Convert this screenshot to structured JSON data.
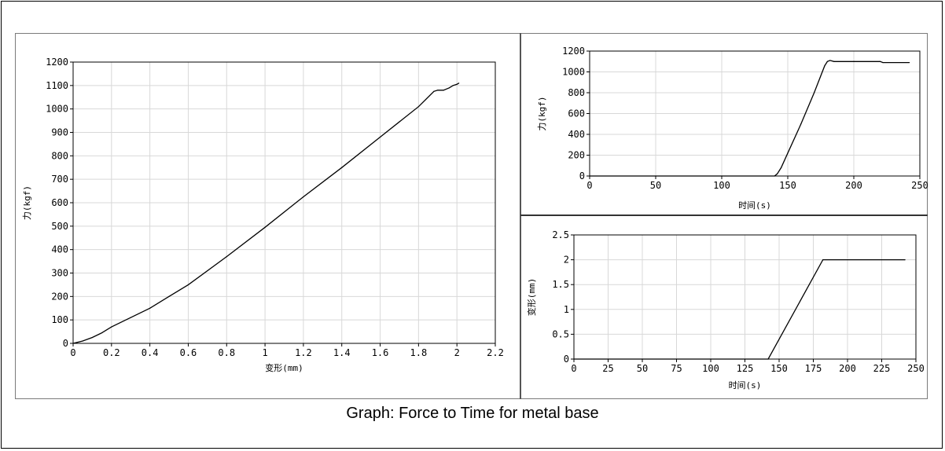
{
  "caption": "Graph: Force to Time for metal base",
  "colors": {
    "line": "#000000",
    "grid": "#d8d8d8",
    "frame": "#000000"
  },
  "chart_data": [
    {
      "id": "force_vs_deformation",
      "type": "line",
      "title": "",
      "xlabel": "变形(mm)",
      "ylabel": "力(kgf)",
      "xlim": [
        0,
        2.2
      ],
      "ylim": [
        0,
        1200
      ],
      "xticks": [
        0,
        0.2,
        0.4,
        0.6,
        0.8,
        1,
        1.2,
        1.4,
        1.6,
        1.8,
        2,
        2.2
      ],
      "xticklabels": [
        "0",
        "0.2",
        "0.4",
        "0.6",
        "0.8",
        "1",
        "1.2",
        "1.4",
        "1.6",
        "1.8",
        "2",
        "2.2"
      ],
      "yticks": [
        0,
        100,
        200,
        300,
        400,
        500,
        600,
        700,
        800,
        900,
        1000,
        1100,
        1200
      ],
      "yticklabels": [
        "0",
        "100",
        "200",
        "300",
        "400",
        "500",
        "600",
        "700",
        "800",
        "900",
        "1000",
        "1100",
        "1200"
      ],
      "grid": true,
      "series": [
        {
          "x": [
            0,
            0.05,
            0.1,
            0.15,
            0.2,
            0.3,
            0.4,
            0.5,
            0.6,
            0.8,
            1.0,
            1.2,
            1.4,
            1.6,
            1.8,
            1.88,
            1.9,
            1.93,
            1.96,
            1.98,
            2.0,
            2.01
          ],
          "y": [
            0,
            10,
            25,
            45,
            70,
            110,
            150,
            200,
            250,
            370,
            495,
            625,
            750,
            880,
            1010,
            1075,
            1080,
            1080,
            1090,
            1100,
            1105,
            1110
          ]
        }
      ]
    },
    {
      "id": "force_vs_time",
      "type": "line",
      "title": "",
      "xlabel": "时间(s)",
      "ylabel": "力(kgf)",
      "xlim": [
        0,
        250
      ],
      "ylim": [
        0,
        1200
      ],
      "xticks": [
        0,
        50,
        100,
        150,
        200,
        250
      ],
      "xticklabels": [
        "0",
        "50",
        "100",
        "150",
        "200",
        "250"
      ],
      "yticks": [
        0,
        200,
        400,
        600,
        800,
        1000,
        1200
      ],
      "yticklabels": [
        "0",
        "200",
        "400",
        "600",
        "800",
        "1000",
        "1200"
      ],
      "grid": true,
      "series": [
        {
          "x": [
            0,
            140,
            142,
            145,
            150,
            160,
            170,
            178,
            180,
            182,
            185,
            200,
            220,
            222,
            242
          ],
          "y": [
            0,
            0,
            20,
            80,
            220,
            500,
            800,
            1060,
            1100,
            1110,
            1100,
            1100,
            1100,
            1090,
            1090
          ]
        }
      ]
    },
    {
      "id": "deformation_vs_time",
      "type": "line",
      "title": "",
      "xlabel": "时间(s)",
      "ylabel": "变形(mm)",
      "xlim": [
        0,
        250
      ],
      "ylim": [
        0,
        2.5
      ],
      "xticks": [
        0,
        25,
        50,
        75,
        100,
        125,
        150,
        175,
        200,
        225,
        250
      ],
      "xticklabels": [
        "0",
        "25",
        "50",
        "75",
        "100",
        "125",
        "150",
        "175",
        "200",
        "225",
        "250"
      ],
      "yticks": [
        0,
        0.5,
        1,
        1.5,
        2,
        2.5
      ],
      "yticklabels": [
        "0",
        "0.5",
        "1",
        "1.5",
        "2",
        "2.5"
      ],
      "grid": true,
      "series": [
        {
          "x": [
            0,
            142,
            182,
            242
          ],
          "y": [
            0,
            0,
            2,
            2
          ]
        }
      ]
    }
  ]
}
